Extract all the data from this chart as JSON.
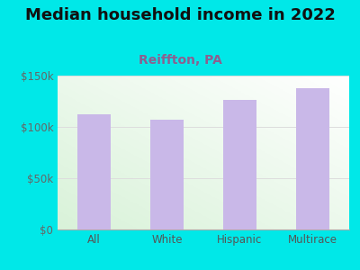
{
  "title": "Median household income in 2022",
  "subtitle": "Reiffton, PA",
  "categories": [
    "All",
    "White",
    "Hispanic",
    "Multirace"
  ],
  "values": [
    112000,
    107000,
    126000,
    138000
  ],
  "bar_color": "#c9b8e8",
  "title_fontsize": 13,
  "subtitle_fontsize": 10,
  "subtitle_color": "#8b6090",
  "title_color": "#111111",
  "ylim": [
    0,
    150000
  ],
  "yticks": [
    0,
    50000,
    100000,
    150000
  ],
  "ytick_labels": [
    "$0",
    "$50k",
    "$100k",
    "$150k"
  ],
  "background_color": "#00e8e8",
  "xlabel_color": "#555555",
  "grid_color": "#dddddd",
  "tick_label_color": "#666666"
}
